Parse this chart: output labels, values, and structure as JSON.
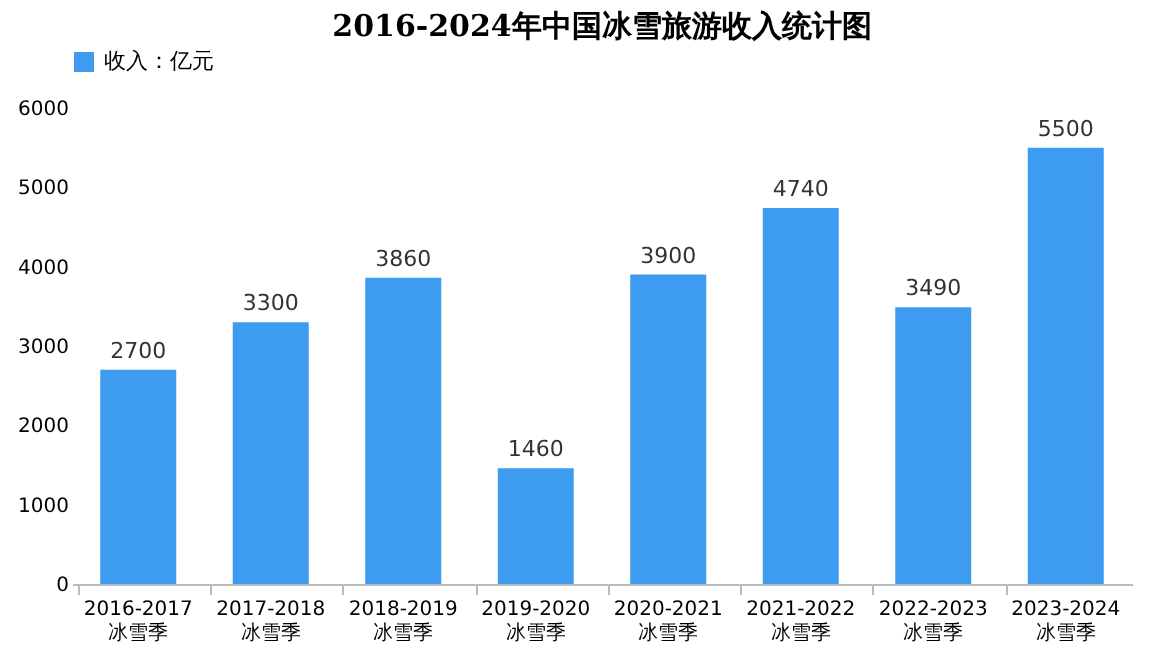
{
  "chart_data": {
    "type": "bar",
    "title": "2016-2024年中国冰雪旅游收入统计图",
    "categories": [
      "2016-2017\n冰雪季",
      "2017-2018\n冰雪季",
      "2018-2019\n冰雪季",
      "2019-2020\n冰雪季",
      "2020-2021\n冰雪季",
      "2021-2022\n冰雪季",
      "2022-2023\n冰雪季",
      "2023-2024\n冰雪季"
    ],
    "series": [
      {
        "name": "收入：亿元",
        "color": "#3d9cf0",
        "values": [
          2700,
          3300,
          3860,
          1460,
          3900,
          4740,
          3490,
          5500
        ]
      }
    ],
    "ylim": [
      0,
      6000
    ],
    "yticks": [
      0,
      1000,
      2000,
      3000,
      4000,
      5000,
      6000
    ],
    "grid": false,
    "legend": "top",
    "data_labels": true
  }
}
